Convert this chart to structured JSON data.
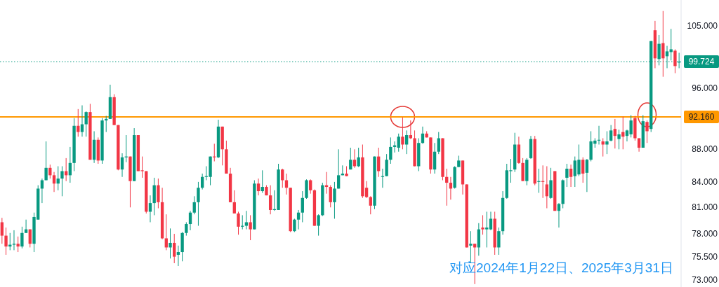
{
  "chart_data": {
    "type": "candlestick",
    "annotations": [
      "对应2024年1月22日、2025年3月31日"
    ],
    "categories": [
      null,
      null,
      null,
      null,
      null,
      null,
      null,
      null,
      null,
      null,
      null,
      null,
      null,
      null,
      null,
      null,
      null,
      null,
      null,
      null,
      null,
      null,
      null,
      null,
      null,
      null,
      null,
      null,
      null,
      null,
      null,
      null,
      null,
      null,
      null,
      null,
      null,
      null,
      null,
      null,
      null,
      null,
      null,
      null,
      null,
      null,
      null,
      null,
      null,
      null,
      null,
      null,
      null,
      null,
      null,
      null,
      null,
      null,
      null,
      null,
      null,
      null,
      null,
      null,
      null,
      null,
      null,
      null,
      null,
      null,
      null,
      null,
      null,
      null,
      null,
      null,
      null,
      null,
      null,
      null,
      null,
      null,
      null,
      null,
      null,
      null,
      null,
      null,
      null,
      null,
      null,
      null,
      null,
      null,
      null,
      null,
      null,
      null,
      null,
      null,
      null,
      null,
      null,
      null,
      null,
      null,
      null,
      null,
      null,
      null,
      null,
      null,
      null,
      null,
      null,
      null,
      null,
      null,
      null,
      null,
      null,
      null,
      null,
      null,
      null,
      null,
      null,
      null,
      null,
      null,
      null,
      null,
      null,
      null,
      null,
      null,
      null,
      null,
      null,
      null,
      null,
      null,
      null,
      null,
      null,
      null,
      null,
      null,
      null,
      null,
      null,
      null,
      null,
      null,
      null,
      null,
      null,
      null,
      null,
      null,
      null,
      null,
      null,
      null,
      null,
      null,
      null,
      null,
      null,
      null
    ],
    "colors": [
      "#f23645",
      "#f23645",
      "#089981",
      "#089981",
      "#f23645",
      "#089981",
      "#089981",
      "#f23645",
      "#089981",
      "#089981",
      "#089981",
      "#089981",
      "#f23645",
      "#f23645",
      "#089981",
      "#089981",
      "#f23645",
      "#089981",
      "#089981",
      "#f23645",
      "#089981",
      "#089981",
      "#f23645",
      "#089981",
      "#f23645",
      "#089981",
      "#089981",
      "#089981",
      "#f23645",
      "#f23645",
      "#089981",
      "#089981",
      "#f23645",
      "#089981",
      "#f23645",
      "#f23645",
      "#f23645",
      "#089981",
      "#089981",
      "#f23645",
      "#f23645",
      "#f23645",
      "#089981",
      "#f23645",
      "#089981",
      "#089981",
      "#089981",
      "#089981",
      "#089981",
      "#089981",
      "#089981",
      "#089981",
      "#089981",
      "#f23645",
      "#089981",
      "#f23645",
      "#f23645",
      "#f23645",
      "#f23645",
      "#f23645",
      "#089981",
      "#089981",
      "#f23645",
      "#089981",
      "#f23645",
      "#089981",
      "#f23645",
      "#f23645",
      "#089981",
      "#089981",
      "#f23645",
      "#f23645",
      "#f23645",
      "#089981",
      "#089981",
      "#089981",
      "#089981",
      "#f23645",
      "#f23645",
      "#089981",
      "#089981",
      "#f23645",
      "#f23645",
      "#089981",
      "#089981",
      "#089981",
      "#f23645",
      "#089981",
      "#f23645",
      "#089981",
      "#f23645",
      "#f23645",
      "#f23645",
      "#089981",
      "#f23645",
      "#089981",
      "#089981",
      "#089981",
      "#089981",
      "#089981",
      "#f23645",
      "#089981",
      "#f23645",
      "#f23645",
      "#089981",
      "#089981",
      "#f23645",
      "#f23645",
      "#089981",
      "#089981",
      "#f23645",
      "#f23645",
      "#f23645",
      "#089981",
      "#089981",
      "#f23645",
      "#f23645",
      "#089981",
      "#f23645",
      "#089981",
      "#f23645",
      "#089981",
      "#089981",
      "#f23645",
      "#089981",
      "#089981",
      "#089981",
      "#089981",
      "#089981",
      "#f23645",
      "#f23645",
      "#089981",
      "#089981",
      "#f23645",
      "#089981",
      "#f23645",
      "#f23645",
      "#089981",
      "#f23645",
      "#089981",
      "#089981",
      "#089981",
      "#f23645",
      "#089981",
      "#089981",
      "#f23645",
      "#089981",
      "#089981",
      "#089981",
      "#089981",
      "#f23645",
      "#089981",
      "#089981",
      "#f23645",
      "#089981",
      "#f23645",
      "#089981",
      "#089981",
      "#f23645",
      "#f23645",
      "#089981",
      "#f23645",
      "#089981",
      "#f23645",
      "#089981",
      "#f23645",
      "#089981",
      "#089981",
      "#f23645",
      "#089981"
    ],
    "ohlc": [
      [
        79.3,
        79.8,
        76.9,
        77.8
      ],
      [
        77.8,
        78.7,
        75.7,
        76.6
      ],
      [
        76.6,
        78.1,
        76.2,
        76.8
      ],
      [
        76.8,
        78.4,
        76.2,
        76.9
      ],
      [
        76.9,
        77.7,
        76.0,
        76.6
      ],
      [
        76.6,
        78.8,
        76.4,
        78.1
      ],
      [
        78.1,
        79.6,
        78.1,
        78.5
      ],
      [
        78.5,
        78.5,
        76.5,
        76.9
      ],
      [
        76.9,
        80.4,
        76.0,
        79.9
      ],
      [
        79.6,
        83.6,
        79.6,
        83.2
      ],
      [
        83.2,
        84.4,
        81.5,
        84.2
      ],
      [
        84.2,
        89.0,
        84.2,
        85.7
      ],
      [
        85.7,
        86.1,
        84.4,
        84.8
      ],
      [
        84.8,
        85.2,
        82.8,
        83.8
      ],
      [
        83.8,
        85.9,
        83.0,
        84.4
      ],
      [
        84.4,
        85.9,
        82.3,
        85.3
      ],
      [
        85.3,
        86.9,
        84.1,
        84.8
      ],
      [
        84.8,
        88.3,
        83.9,
        86.3
      ],
      [
        86.3,
        92.0,
        85.3,
        91.0
      ],
      [
        91.0,
        93.2,
        89.6,
        90.2
      ],
      [
        90.2,
        93.7,
        89.6,
        91.2
      ],
      [
        91.2,
        92.9,
        89.6,
        92.8
      ],
      [
        92.8,
        93.9,
        86.7,
        86.7
      ],
      [
        86.7,
        90.3,
        86.3,
        89.2
      ],
      [
        89.2,
        89.5,
        86.2,
        86.6
      ],
      [
        86.6,
        92.0,
        86.2,
        91.7
      ],
      [
        91.7,
        92.3,
        90.2,
        91.9
      ],
      [
        91.9,
        96.5,
        91.9,
        94.8
      ],
      [
        94.8,
        95.2,
        91.1,
        91.1
      ],
      [
        91.1,
        91.1,
        85.4,
        85.5
      ],
      [
        85.5,
        87.5,
        84.6,
        87.0
      ],
      [
        87.0,
        89.8,
        86.4,
        87.1
      ],
      [
        87.1,
        87.1,
        81.0,
        84.1
      ],
      [
        84.1,
        90.7,
        84.1,
        89.8
      ],
      [
        89.8,
        89.8,
        85.3,
        85.3
      ],
      [
        85.4,
        87.1,
        84.5,
        85.3
      ],
      [
        85.3,
        85.3,
        80.3,
        80.5
      ],
      [
        80.5,
        82.4,
        79.3,
        81.5
      ],
      [
        81.5,
        84.5,
        80.1,
        83.6
      ],
      [
        83.6,
        84.4,
        80.9,
        81.6
      ],
      [
        81.6,
        83.3,
        77.4,
        77.5
      ],
      [
        77.5,
        80.2,
        76.2,
        76.5
      ],
      [
        76.5,
        78.6,
        75.3,
        77.0
      ],
      [
        77.0,
        78.0,
        74.8,
        75.5
      ],
      [
        75.7,
        76.7,
        74.5,
        76.0
      ],
      [
        76.0,
        78.2,
        75.0,
        78.1
      ],
      [
        78.1,
        79.3,
        77.8,
        79.1
      ],
      [
        79.1,
        80.6,
        78.4,
        80.4
      ],
      [
        80.4,
        82.3,
        80.2,
        81.6
      ],
      [
        81.6,
        84.0,
        78.9,
        83.3
      ],
      [
        83.3,
        85.0,
        83.1,
        84.6
      ],
      [
        84.6,
        85.9,
        84.2,
        84.7
      ],
      [
        84.6,
        87.1,
        83.6,
        87.1
      ],
      [
        87.1,
        88.7,
        86.5,
        87.0
      ],
      [
        87.0,
        91.8,
        86.9,
        90.9
      ],
      [
        90.9,
        90.9,
        86.0,
        88.0
      ],
      [
        88.0,
        89.1,
        85.0,
        85.0
      ],
      [
        85.0,
        85.7,
        81.6,
        81.6
      ],
      [
        81.6,
        83.0,
        80.3,
        80.3
      ],
      [
        80.3,
        80.5,
        77.9,
        78.8
      ],
      [
        78.8,
        80.1,
        78.5,
        78.9
      ],
      [
        78.9,
        80.6,
        78.5,
        79.3
      ],
      [
        79.3,
        80.1,
        77.3,
        78.5
      ],
      [
        78.5,
        84.2,
        78.5,
        83.8
      ],
      [
        83.8,
        84.4,
        82.4,
        82.9
      ],
      [
        82.9,
        85.4,
        82.7,
        83.4
      ],
      [
        83.4,
        83.6,
        82.4,
        82.4
      ],
      [
        82.4,
        83.6,
        80.2,
        80.7
      ],
      [
        80.7,
        83.0,
        80.6,
        80.8
      ],
      [
        80.7,
        86.2,
        80.7,
        85.5
      ],
      [
        85.5,
        85.6,
        83.3,
        84.2
      ],
      [
        84.2,
        85.0,
        82.5,
        83.3
      ],
      [
        83.3,
        83.3,
        78.2,
        78.3
      ],
      [
        78.3,
        79.7,
        78.2,
        79.6
      ],
      [
        79.6,
        80.7,
        78.5,
        80.4
      ],
      [
        80.4,
        82.9,
        79.3,
        82.1
      ],
      [
        82.1,
        84.3,
        82.0,
        84.2
      ],
      [
        84.2,
        84.3,
        82.6,
        83.0
      ],
      [
        83.0,
        83.1,
        78.9,
        78.9
      ],
      [
        78.9,
        80.2,
        77.8,
        80.1
      ],
      [
        80.1,
        83.9,
        80.0,
        83.6
      ],
      [
        83.6,
        85.2,
        82.6,
        83.4
      ],
      [
        83.4,
        83.6,
        81.0,
        81.6
      ],
      [
        81.6,
        84.0,
        79.7,
        83.2
      ],
      [
        83.2,
        88.0,
        83.2,
        84.8
      ],
      [
        84.8,
        86.0,
        84.8,
        85.0
      ],
      [
        85.0,
        85.9,
        84.7,
        84.7
      ],
      [
        85.5,
        88.2,
        85.5,
        86.7
      ],
      [
        86.7,
        88.0,
        85.7,
        85.9
      ],
      [
        85.9,
        88.2,
        85.8,
        87.0
      ],
      [
        87.0,
        88.6,
        82.1,
        82.3
      ],
      [
        83.3,
        84.1,
        82.1,
        82.2
      ],
      [
        82.2,
        82.3,
        80.2,
        81.2
      ],
      [
        81.2,
        87.1,
        80.8,
        87.1
      ],
      [
        87.1,
        88.2,
        84.6,
        85.3
      ],
      [
        84.6,
        85.6,
        83.3,
        84.7
      ],
      [
        84.7,
        87.4,
        84.7,
        86.7
      ],
      [
        86.7,
        89.5,
        86.2,
        88.3
      ],
      [
        88.3,
        89.0,
        87.6,
        88.5
      ],
      [
        88.2,
        90.0,
        87.7,
        89.6
      ],
      [
        89.6,
        92.1,
        88.0,
        88.6
      ],
      [
        88.6,
        90.4,
        87.4,
        89.8
      ],
      [
        89.8,
        91.7,
        89.3,
        89.4
      ],
      [
        89.4,
        90.4,
        85.9,
        85.9
      ],
      [
        85.9,
        89.4,
        85.3,
        88.8
      ],
      [
        88.8,
        90.9,
        88.7,
        90.0
      ],
      [
        90.0,
        90.3,
        89.5,
        89.5
      ],
      [
        89.5,
        89.5,
        85.0,
        85.5
      ],
      [
        85.5,
        88.8,
        85.0,
        87.7
      ],
      [
        87.7,
        90.2,
        87.4,
        89.4
      ],
      [
        89.4,
        89.4,
        84.2,
        84.6
      ],
      [
        84.6,
        85.6,
        81.2,
        83.9
      ],
      [
        83.9,
        84.6,
        81.9,
        83.2
      ],
      [
        83.3,
        85.9,
        83.2,
        85.8
      ],
      [
        85.8,
        87.2,
        85.8,
        86.6
      ],
      [
        86.6,
        86.6,
        82.5,
        83.7
      ],
      [
        83.7,
        83.7,
        76.5,
        76.5
      ],
      [
        76.7,
        78.3,
        74.8,
        76.9
      ],
      [
        76.9,
        76.9,
        72.6,
        76.5
      ],
      [
        76.5,
        79.2,
        75.6,
        78.5
      ],
      [
        78.7,
        80.1,
        77.9,
        78.5
      ],
      [
        78.5,
        80.5,
        76.5,
        78.7
      ],
      [
        78.5,
        80.5,
        78.4,
        79.7
      ],
      [
        79.7,
        80.5,
        75.7,
        76.5
      ],
      [
        76.5,
        78.7,
        75.7,
        78.3
      ],
      [
        78.3,
        82.9,
        77.9,
        82.1
      ],
      [
        82.1,
        86.2,
        82.0,
        85.4
      ],
      [
        85.3,
        86.8,
        83.9,
        85.4
      ],
      [
        85.5,
        90.1,
        85.2,
        88.6
      ],
      [
        88.6,
        89.6,
        86.2,
        86.3
      ],
      [
        86.3,
        86.9,
        84.1,
        84.1
      ],
      [
        84.1,
        86.9,
        83.6,
        86.7
      ],
      [
        86.9,
        89.7,
        86.8,
        89.3
      ],
      [
        89.3,
        89.7,
        83.6,
        83.8
      ],
      [
        84.0,
        85.6,
        82.7,
        84.1
      ],
      [
        84.1,
        86.0,
        82.1,
        84.0
      ],
      [
        83.7,
        85.9,
        80.9,
        82.3
      ],
      [
        82.1,
        85.7,
        82.0,
        84.2
      ],
      [
        85.3,
        85.3,
        80.6,
        80.6
      ],
      [
        80.6,
        81.5,
        78.7,
        81.4
      ],
      [
        81.4,
        84.3,
        80.9,
        84.2
      ],
      [
        84.5,
        86.2,
        83.4,
        85.6
      ],
      [
        85.6,
        86.1,
        83.4,
        84.6
      ],
      [
        84.7,
        87.1,
        83.4,
        86.6
      ],
      [
        84.9,
        88.6,
        84.7,
        86.7
      ],
      [
        86.7,
        87.0,
        83.9,
        85.0
      ],
      [
        85.1,
        86.8,
        82.8,
        86.7
      ],
      [
        86.7,
        90.3,
        86.5,
        89.0
      ],
      [
        88.7,
        89.4,
        88.2,
        89.1
      ],
      [
        89.1,
        91.0,
        88.6,
        89.2
      ],
      [
        89.0,
        89.4,
        87.1,
        88.6
      ],
      [
        88.6,
        90.3,
        87.4,
        89.0
      ],
      [
        89.1,
        91.1,
        89.0,
        90.4
      ],
      [
        90.6,
        91.9,
        88.1,
        89.7
      ],
      [
        89.3,
        90.5,
        88.0,
        89.9
      ],
      [
        90.2,
        92.2,
        88.0,
        89.6
      ],
      [
        89.7,
        90.5,
        89.0,
        90.4
      ],
      [
        89.9,
        92.4,
        89.5,
        91.7
      ],
      [
        92.0,
        92.3,
        89.1,
        89.4
      ],
      [
        89.4,
        89.4,
        87.7,
        88.2
      ],
      [
        88.2,
        92.4,
        88.2,
        91.6
      ],
      [
        91.5,
        91.7,
        88.8,
        90.3
      ],
      [
        90.6,
        102.7,
        90.2,
        102.7
      ],
      [
        104.3,
        105.7,
        98.8,
        100.2
      ],
      [
        100.1,
        103.6,
        99.2,
        102.3
      ],
      [
        102.4,
        107.2,
        97.6,
        100.2
      ],
      [
        100.5,
        102.0,
        98.8,
        101.2
      ],
      [
        101.1,
        104.5,
        99.9,
        101.5
      ],
      [
        101.3,
        101.5,
        98.1,
        99.1
      ],
      [
        99.6,
        101.0,
        98.8,
        99.724
      ]
    ],
    "log": true,
    "ylim": [
      72.3,
      108.9
    ],
    "yticks": [
      {
        "value": 73,
        "label": "73.000"
      },
      {
        "value": 75.5,
        "label": "75.500"
      },
      {
        "value": 78,
        "label": "78.000"
      },
      {
        "value": 81,
        "label": "81.000"
      },
      {
        "value": 84,
        "label": "84.000"
      },
      {
        "value": 88,
        "label": "88.000"
      },
      {
        "value": 96,
        "label": "96.000"
      },
      {
        "value": 105,
        "label": "105.000"
      }
    ],
    "ref_lines": [
      {
        "axis": "y",
        "value": 92.16,
        "label": "92.160",
        "color": "#ff9800",
        "line_style": "solid"
      },
      {
        "axis": "y",
        "value": 99.724,
        "label": "99.724",
        "color": "#089981",
        "line_style": "dotted"
      }
    ],
    "tick_labels": "y"
  }
}
